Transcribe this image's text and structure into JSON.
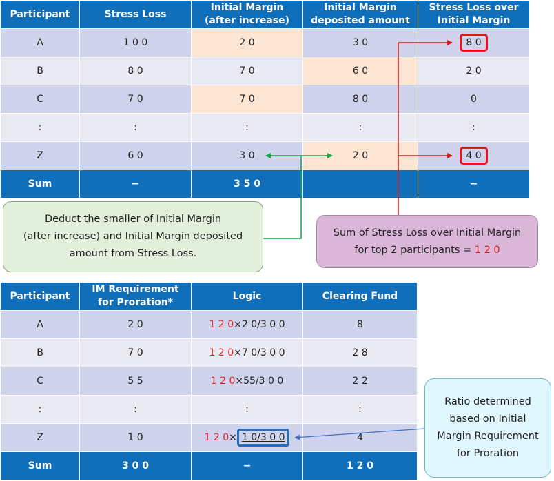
{
  "top_table": {
    "headers": {
      "participant": "Participant",
      "stress_loss": "Stress Loss",
      "im_after_1": "Initial Margin",
      "im_after_2": "(after increase)",
      "im_dep_1": "Initial Margin",
      "im_dep_2": "deposited amount",
      "over_1": "Stress Loss over",
      "over_2": "Initial Margin"
    },
    "rows": [
      {
        "participant": "A",
        "stress_loss": "1 0 0",
        "im_after": "2 0",
        "im_dep": "3 0",
        "over": "8 0"
      },
      {
        "participant": "B",
        "stress_loss": "8 0",
        "im_after": "7 0",
        "im_dep": "6 0",
        "over": "2 0"
      },
      {
        "participant": "C",
        "stress_loss": "7 0",
        "im_after": "7 0",
        "im_dep": "8 0",
        "over": "0"
      },
      {
        "participant": ":",
        "stress_loss": ":",
        "im_after": ":",
        "im_dep": ":",
        "over": ":"
      },
      {
        "participant": "Z",
        "stress_loss": "6 0",
        "im_after": "3 0",
        "im_dep": "2 0",
        "over": "4 0"
      }
    ],
    "sum": {
      "participant": "Sum",
      "stress_loss": "−",
      "im_after": "3 5 0",
      "im_dep": "",
      "over": "−"
    }
  },
  "bottom_table": {
    "headers": {
      "participant": "Participant",
      "im_req_1": "IM Requirement",
      "im_req_2": "for Proration*",
      "logic": "Logic",
      "fund": "Clearing Fund"
    },
    "rows": [
      {
        "participant": "A",
        "im_req": "2 0",
        "logic_red": "1 2 0",
        "logic_rest": "×2 0/3 0 0",
        "fund": "8"
      },
      {
        "participant": "B",
        "im_req": "7 0",
        "logic_red": "1 2 0",
        "logic_rest": "×7 0/3 0 0",
        "fund": "2 8"
      },
      {
        "participant": "C",
        "im_req": "5 5",
        "logic_red": "1 2 0",
        "logic_rest": "×55/3 0 0",
        "fund": "2 2"
      },
      {
        "participant": ":",
        "im_req": ":",
        "logic_red": "",
        "logic_rest": ":",
        "fund": ":"
      },
      {
        "participant": "Z",
        "im_req": "1 0",
        "logic_red": "1 2 0",
        "logic_times": "×",
        "logic_frac": "1 0/3 0 0",
        "fund": "4"
      }
    ],
    "sum": {
      "participant": "Sum",
      "im_req": "3 0 0",
      "logic": "−",
      "fund": "1 2 0"
    }
  },
  "callouts": {
    "green_1": "Deduct the smaller of Initial Margin",
    "green_2": "(after increase) and Initial Margin deposited",
    "green_3": "amount from Stress Loss.",
    "purple_1": "Sum of Stress Loss over Initial Margin",
    "purple_2": "for top 2 participants = ",
    "purple_value": "1 2 0",
    "cyan_1": "Ratio determined",
    "cyan_2": "based on Initial",
    "cyan_3": "Margin Requirement",
    "cyan_4": "for Proration"
  },
  "colors": {
    "header_blue": "#0f6fba",
    "row_dark": "#d0d3ec",
    "row_light": "#e9eaf4",
    "highlight_peach": "#fde5d3",
    "red": "#e02020",
    "green_arrow": "#1aa34a",
    "red_arrow": "#e8151b",
    "blue_arrow": "#3a73c9"
  }
}
